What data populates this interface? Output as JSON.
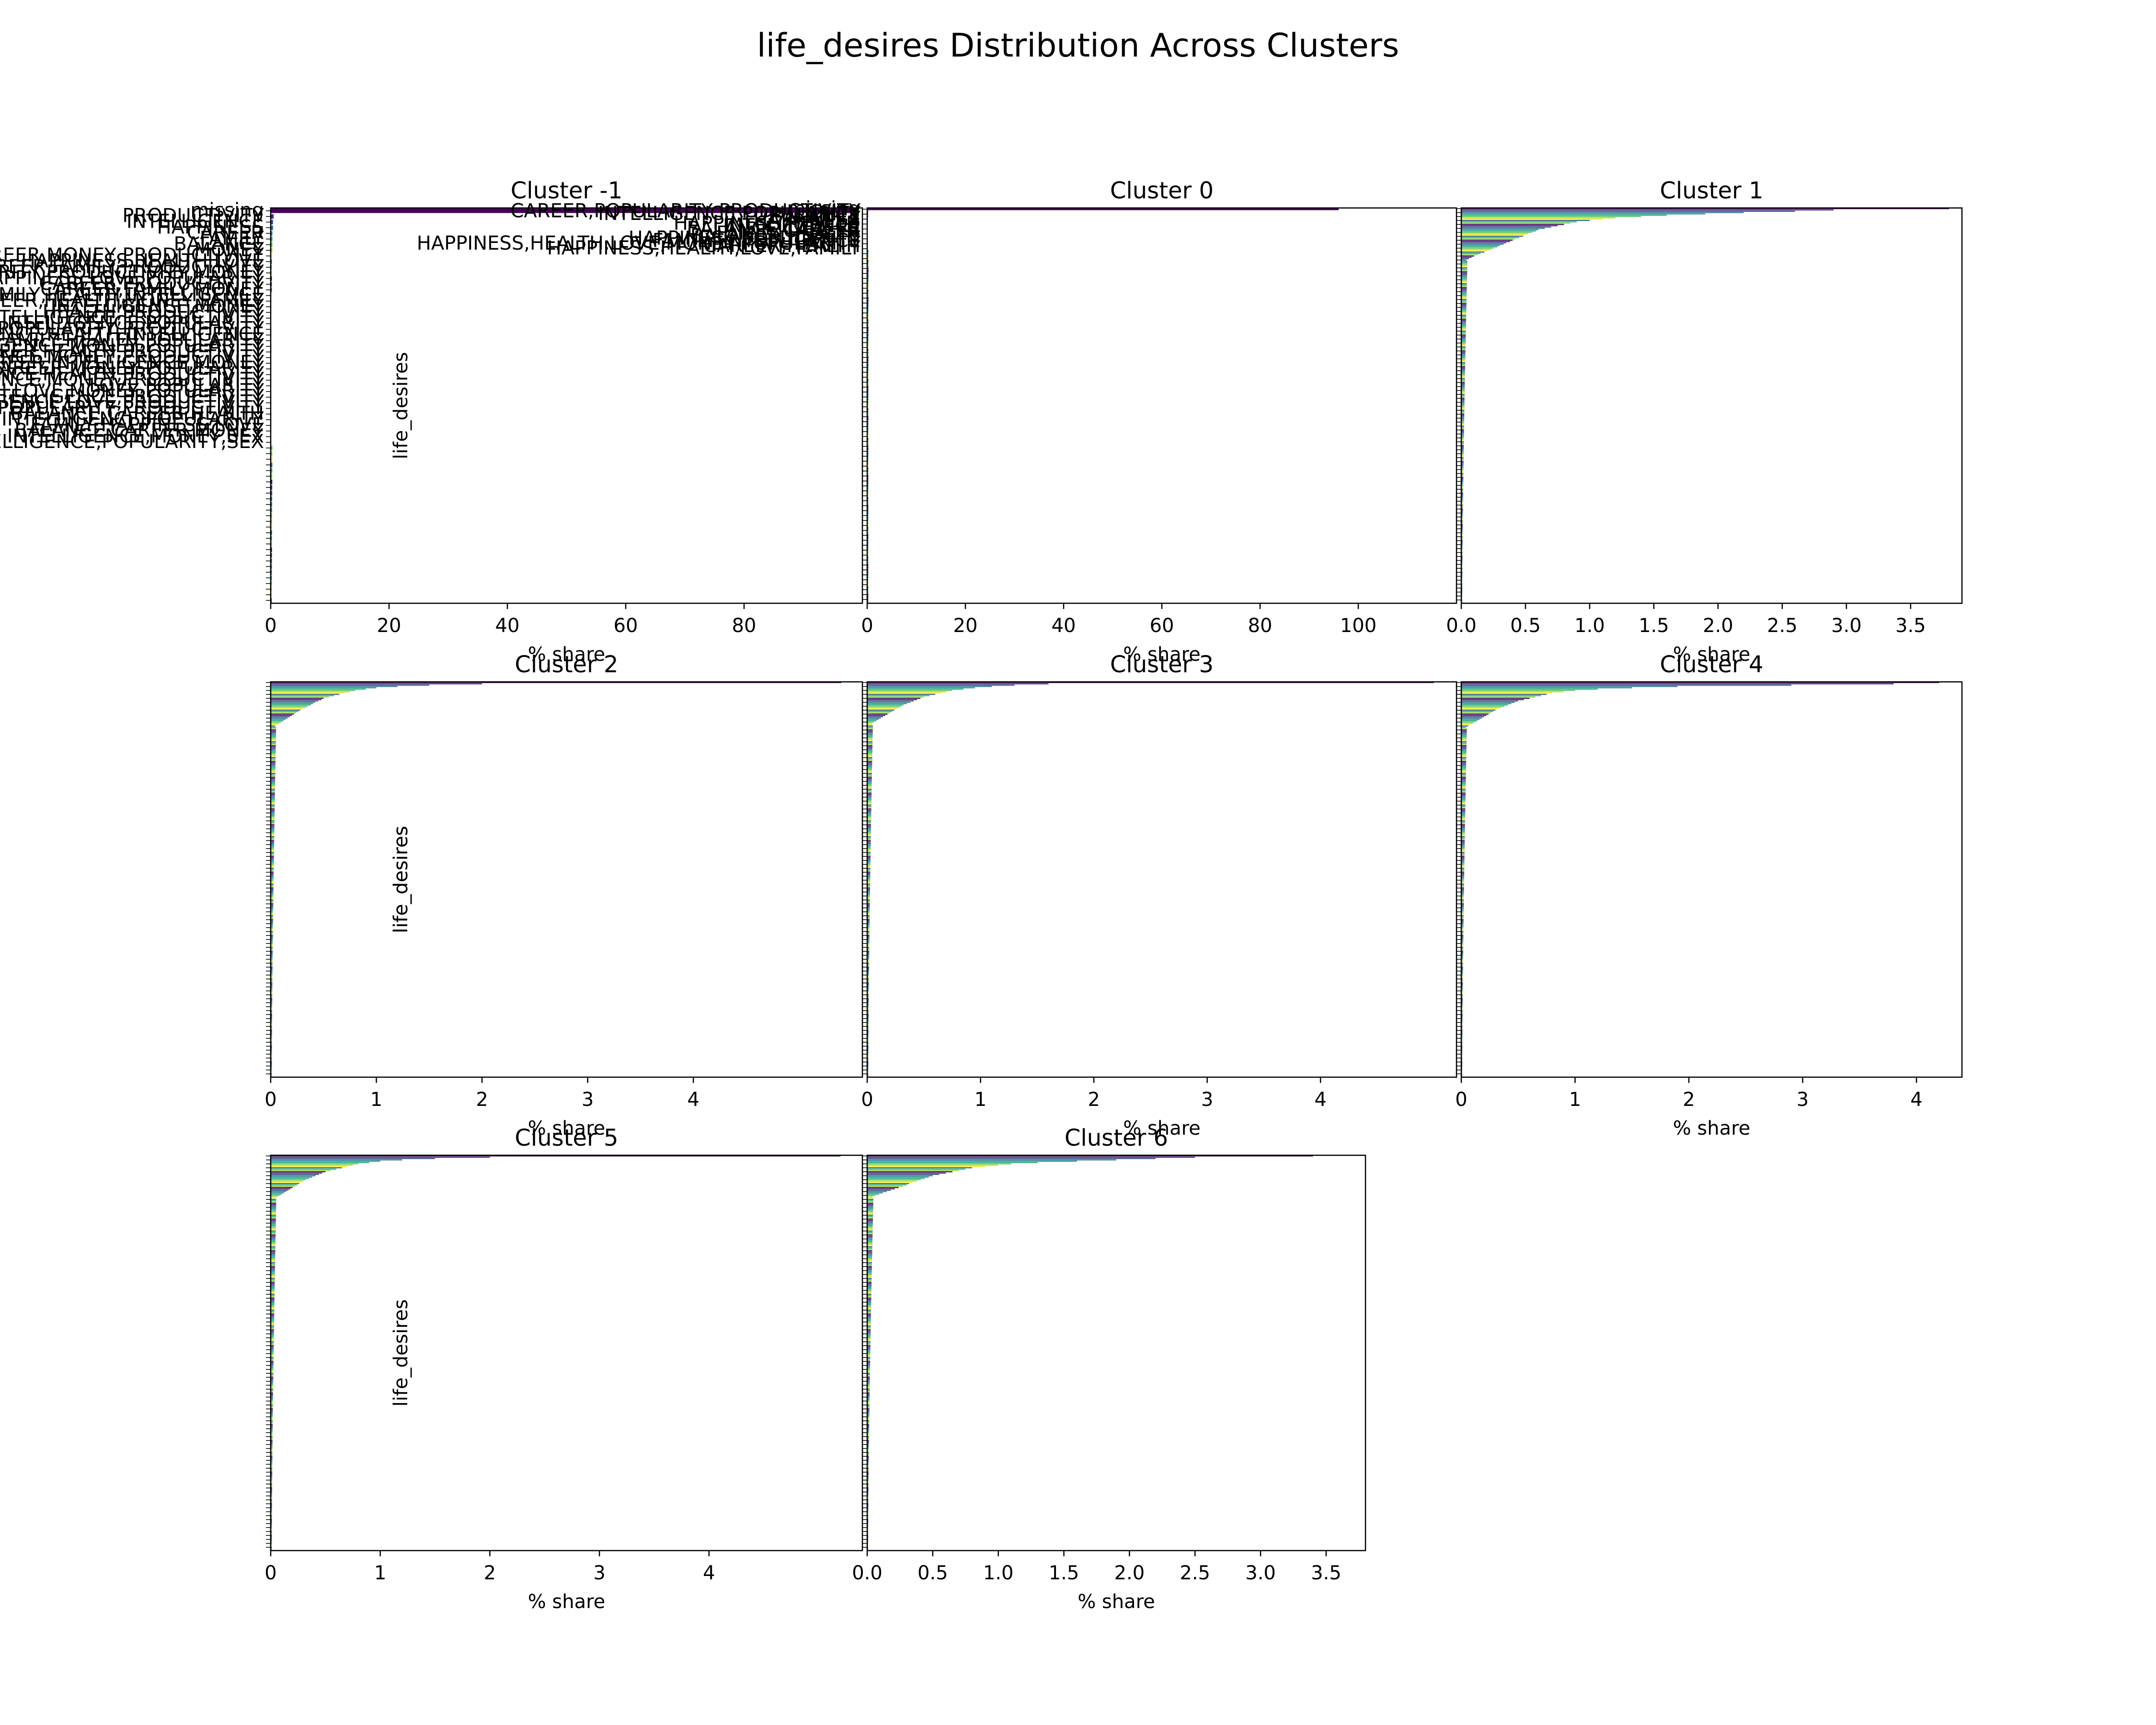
{
  "figure": {
    "title": "life_desires Distribution Across Clusters"
  },
  "chart_data": [
    {
      "type": "bar",
      "orientation": "horizontal",
      "title": "Cluster -1",
      "xlabel": "% share",
      "ylabel": "life_desires",
      "xlim": [
        0,
        100
      ],
      "xticks": [
        "0",
        "20",
        "40",
        "60",
        "80"
      ],
      "category_count_estimate": 70,
      "categories": [
        "missing",
        "PRODUCTIVITY",
        "INTELLIGENCE",
        "HAPPINESS",
        "CAREER",
        "FAMILY",
        "BALANCE",
        "MONEY",
        "CAREER,MONEY,PRODUCTIVITY",
        "HAPPINESS,HEALTH,LOVE",
        "CAREER,FAMILY,PRODUCTIVITY",
        "INTELLIGENCE,POPULARITY,PRODUCTIVITY,MONEY",
        "HAPPINESS,LOVE,POPULARITY",
        "CAREER,PRODUCTIVITY",
        "CAREER,FAMILY,MONEY",
        "FAMILY,HEALTH,INTELLIGENCE",
        "CAREER,HEALTH,MONEY,FAMILY",
        "INTELLIGENCE,MONEY",
        "HEALTH,PRODUCTIVITY",
        "CAREER,INTELLIGENCE,PRODUCTIVITY",
        "HAPPINESS,INTELLIGENCE,POPULARITY",
        "HAPPINESS,POPULARITY,PRODUCTIVITY",
        "BALANCE,HEALTH,INTELLIGENCE",
        "FAMILY,HEALTH,POPULARITY",
        "INTELLIGENCE,MONEY,POPULARITY",
        "CAREER,HEALTH,PRODUCTIVITY",
        "BALANCE,MONEY,PRODUCTIVITY",
        "CAREER,INTELLIGENCE,MONEY",
        "CAREER,MONEY,POPULARITY",
        "BALANCE,HEALTH,PRODUCTIVITY",
        "INTELLIGENCE,MONEY,PRODUCTIVITY",
        "LOVE,POPULARITY",
        "HAPPINESS,HEALTH,LOVE,MONEY,POPULARITY",
        "BALANCE,INTELLIGENCE,PRODUCTIVITY",
        "INTELLIGENCE,LOVE,PRODUCTIVITY",
        "FAMILY,LOVE,POPULARITY,PRODUCTIVITY",
        "BALANCE,CAREER,HEALTH",
        "HEALTH,INTELLIGENCE,POPULARITY",
        "FAMILY,HAPPINESS,LOVE",
        "BALANCE,CAREER,MONEY",
        "INTELLIGENCE,MONEY,SEX",
        "HEALTH,INTELLIGENCE,POPULARITY,SEX"
      ],
      "values": [
        98.5,
        0.5,
        0.4,
        0.4,
        0.3,
        0.3,
        0.3,
        0.3,
        0.2,
        0.2,
        0.2,
        0.2,
        0.2,
        0.2,
        0.2,
        0.1,
        0.1,
        0.1,
        0.1,
        0.1,
        0.1,
        0.1,
        0.1,
        0.1,
        0.1,
        0.1,
        0.1,
        0.1,
        0.1,
        0.1,
        0.1,
        0.1,
        0.1,
        0.1,
        0.1,
        0.1,
        0.1,
        0.1,
        0.1,
        0.1,
        0.1,
        0.1
      ]
    },
    {
      "type": "bar",
      "orientation": "horizontal",
      "title": "Cluster 0",
      "xlabel": "% share",
      "ylabel": "",
      "xlim": [
        0,
        120
      ],
      "xticks": [
        "0",
        "20",
        "40",
        "60",
        "80",
        "100"
      ],
      "category_count_estimate": 160,
      "categories": [
        "missing",
        "CAREER,POPULARITY,PRODUCTIVITY",
        "INTELLIGENCE,POPULARITY",
        "BALANCE",
        "FAMILY",
        "HAPPINESS",
        "HAPPINESS,HEALTH",
        "INTELLIGENCE",
        "BALANCE,CAREER",
        "CAREER",
        "FAMILY,HEALTH",
        "BALANCE,HEALTH",
        "HAPPINESS,POPULARITY",
        "FAMILY,INTELLIGENCE",
        "HAPPINESS,HEALTH,LOVE,MONEY,POPULARITY",
        "CAREER,HEALTH",
        "HAPPINESS,HEALTH,LOVE,FAMILY"
      ],
      "values": [
        96.0,
        0.2,
        0.2,
        0.2,
        0.15,
        0.15,
        0.1,
        0.1,
        0.1,
        0.1,
        0.1,
        0.1,
        0.05,
        0.05,
        0.05,
        0.05,
        0.05
      ]
    },
    {
      "type": "bar",
      "orientation": "horizontal",
      "title": "Cluster 1",
      "xlabel": "% share",
      "ylabel": "",
      "xlim": [
        0,
        3.9
      ],
      "xticks": [
        "0.0",
        "0.5",
        "1.0",
        "1.5",
        "2.0",
        "2.5",
        "3.0",
        "3.5"
      ],
      "category_count_estimate": 300,
      "values": [
        3.8,
        2.9,
        2.6,
        2.2,
        1.9,
        1.6,
        1.4,
        1.2,
        1.1,
        1.0,
        0.9,
        0.85,
        0.8,
        0.75,
        0.7,
        0.65,
        0.6,
        0.58,
        0.55,
        0.52,
        0.5,
        0.48,
        0.45,
        0.42,
        0.4,
        0.38,
        0.35,
        0.33,
        0.3,
        0.28,
        0.25,
        0.23,
        0.2,
        0.18,
        0.15,
        0.13,
        0.1,
        0.08,
        0.06,
        0.04
      ]
    },
    {
      "type": "bar",
      "orientation": "horizontal",
      "title": "Cluster 2",
      "xlabel": "% share",
      "ylabel": "life_desires",
      "xlim": [
        0,
        5.6
      ],
      "xticks": [
        "0",
        "1",
        "2",
        "3",
        "4"
      ],
      "category_count_estimate": 300,
      "values": [
        5.4,
        2.0,
        1.5,
        1.2,
        1.0,
        0.9,
        0.8,
        0.75,
        0.7,
        0.65,
        0.6,
        0.55,
        0.5,
        0.48,
        0.45,
        0.42,
        0.4,
        0.38,
        0.35,
        0.33,
        0.3,
        0.28,
        0.26,
        0.24,
        0.22,
        0.2,
        0.18,
        0.16,
        0.14,
        0.12,
        0.1,
        0.08,
        0.06,
        0.04
      ]
    },
    {
      "type": "bar",
      "orientation": "horizontal",
      "title": "Cluster 3",
      "xlabel": "% share",
      "ylabel": "life_desires",
      "xlim": [
        0,
        5.2
      ],
      "xticks": [
        "0",
        "1",
        "2",
        "3",
        "4"
      ],
      "category_count_estimate": 300,
      "values": [
        5.0,
        1.6,
        1.3,
        1.1,
        0.95,
        0.85,
        0.75,
        0.7,
        0.65,
        0.6,
        0.55,
        0.5,
        0.47,
        0.44,
        0.41,
        0.38,
        0.35,
        0.32,
        0.3,
        0.28,
        0.26,
        0.24,
        0.22,
        0.2,
        0.18,
        0.16,
        0.14,
        0.12,
        0.1,
        0.08,
        0.06,
        0.04
      ]
    },
    {
      "type": "bar",
      "orientation": "horizontal",
      "title": "Cluster 4",
      "xlabel": "% share",
      "ylabel": "",
      "xlim": [
        0,
        4.4
      ],
      "xticks": [
        "0",
        "1",
        "2",
        "3",
        "4"
      ],
      "category_count_estimate": 300,
      "values": [
        4.2,
        3.8,
        2.9,
        1.9,
        1.5,
        1.2,
        1.0,
        0.9,
        0.8,
        0.75,
        0.7,
        0.65,
        0.6,
        0.55,
        0.5,
        0.47,
        0.44,
        0.41,
        0.38,
        0.35,
        0.32,
        0.3,
        0.28,
        0.26,
        0.24,
        0.22,
        0.2,
        0.18,
        0.16,
        0.14,
        0.12,
        0.1,
        0.08,
        0.06,
        0.04
      ]
    },
    {
      "type": "bar",
      "orientation": "horizontal",
      "title": "Cluster 5",
      "xlabel": "% share",
      "ylabel": "life_desires",
      "xlim": [
        0,
        5.4
      ],
      "xticks": [
        "0",
        "1",
        "2",
        "3",
        "4"
      ],
      "category_count_estimate": 300,
      "values": [
        5.2,
        2.0,
        1.5,
        1.2,
        1.0,
        0.9,
        0.8,
        0.75,
        0.7,
        0.65,
        0.6,
        0.55,
        0.5,
        0.47,
        0.44,
        0.41,
        0.38,
        0.35,
        0.32,
        0.3,
        0.28,
        0.26,
        0.24,
        0.22,
        0.2,
        0.18,
        0.16,
        0.14,
        0.12,
        0.1,
        0.08,
        0.06,
        0.04
      ]
    },
    {
      "type": "bar",
      "orientation": "horizontal",
      "title": "Cluster 6",
      "xlabel": "% share",
      "ylabel": "",
      "xlim": [
        0,
        3.8
      ],
      "xticks": [
        "0.0",
        "0.5",
        "1.0",
        "1.5",
        "2.0",
        "2.5",
        "3.0",
        "3.5"
      ],
      "category_count_estimate": 300,
      "values": [
        3.4,
        2.5,
        2.2,
        1.9,
        1.6,
        1.3,
        1.1,
        1.0,
        0.9,
        0.8,
        0.75,
        0.7,
        0.65,
        0.6,
        0.55,
        0.5,
        0.47,
        0.44,
        0.41,
        0.38,
        0.35,
        0.32,
        0.3,
        0.27,
        0.24,
        0.21,
        0.18,
        0.15,
        0.12,
        0.09,
        0.06,
        0.04
      ]
    }
  ]
}
